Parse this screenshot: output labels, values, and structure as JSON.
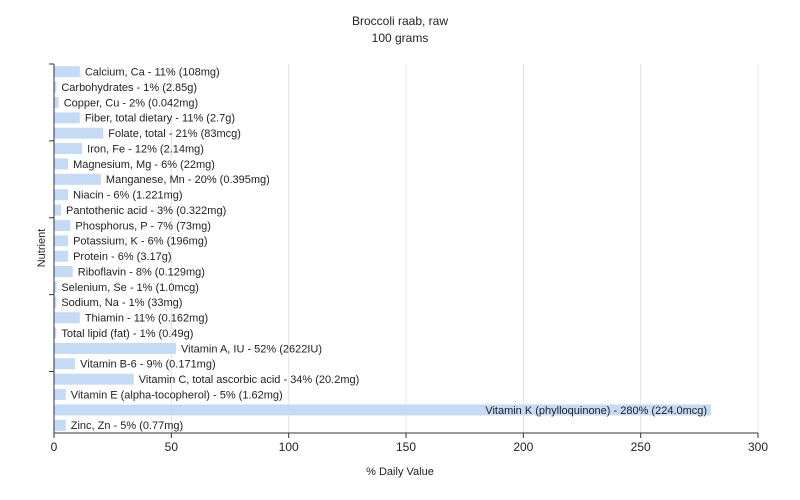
{
  "chart_data": {
    "type": "hbar",
    "title": "Broccoli raab, raw",
    "subtitle": "100 grams",
    "x_label": "% Daily Value",
    "y_label": "Nutrient",
    "categories": [
      null,
      null,
      null,
      null,
      null,
      null,
      null,
      null,
      null,
      null,
      null,
      null,
      null,
      null,
      null,
      null,
      null,
      null,
      null,
      null,
      null,
      null,
      null,
      null
    ],
    "values": [
      11,
      1,
      2,
      11,
      21,
      12,
      6,
      20,
      6,
      3,
      7,
      6,
      6,
      8,
      1,
      1,
      11,
      1,
      52,
      9,
      34,
      5,
      280,
      5
    ],
    "value_labels": [
      "Calcium, Ca - 11% (108mg)",
      "Carbohydrates - 1% (2.85g)",
      "Copper, Cu - 2% (0.042mg)",
      "Fiber, total dietary - 11% (2.7g)",
      "Folate, total - 21% (83mcg)",
      "Iron, Fe - 12% (2.14mg)",
      "Magnesium, Mg - 6% (22mg)",
      "Manganese, Mn - 20% (0.395mg)",
      "Niacin - 6% (1.221mg)",
      "Pantothenic acid - 3% (0.322mg)",
      "Phosphorus, P - 7% (73mg)",
      "Potassium, K - 6% (196mg)",
      "Protein - 6% (3.17g)",
      "Riboflavin - 8% (0.129mg)",
      "Selenium, Se - 1% (1.0mcg)",
      "Sodium, Na - 1% (33mg)",
      "Thiamin - 11% (0.162mg)",
      "Total lipid (fat) - 1% (0.49g)",
      "Vitamin A, IU - 52% (2622IU)",
      "Vitamin B-6 - 9% (0.171mg)",
      "Vitamin C, total ascorbic acid - 34% (20.2mg)",
      "Vitamin E (alpha-tocopherol) - 5% (1.62mg)",
      "Vitamin K (phylloquinone) - 280% (224.0mcg)",
      "Zinc, Zn - 5% (0.77mg)"
    ],
    "color": "#c5daf4",
    "xlim": [
      0,
      300
    ],
    "xticks": [
      0,
      50,
      100,
      150,
      200,
      250,
      300
    ],
    "grid": true
  }
}
